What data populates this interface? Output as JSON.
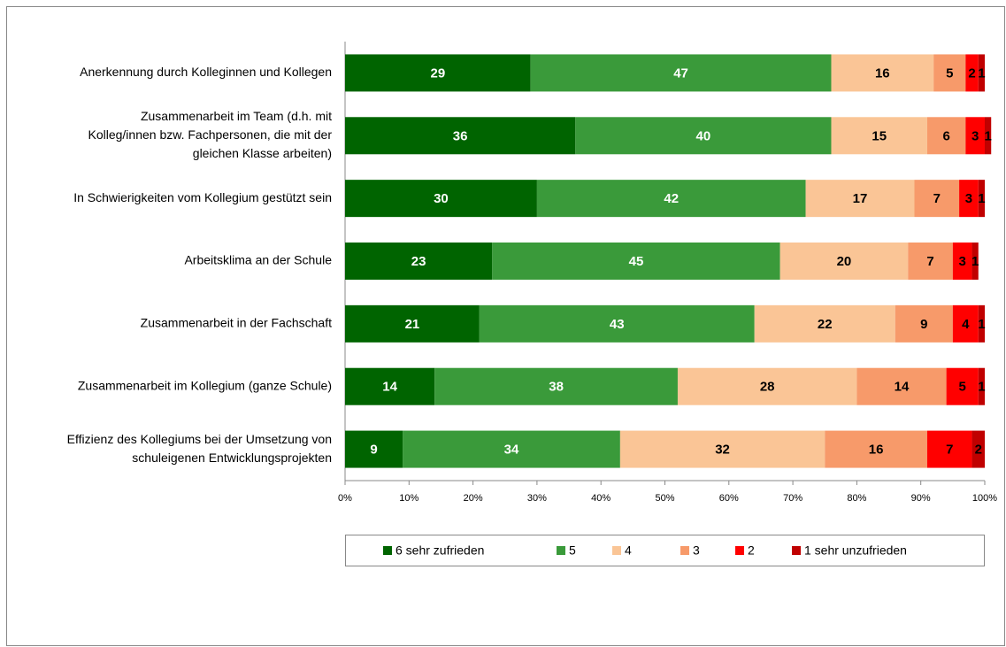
{
  "chart_data": {
    "type": "stacked_barh",
    "categories": [
      [
        "Anerkennung durch Kolleginnen und Kollegen"
      ],
      [
        "Zusammenarbeit im Team (d.h. mit",
        "Kolleg/innen bzw. Fachpersonen, die mit der",
        "gleichen Klasse arbeiten)"
      ],
      [
        "In Schwierigkeiten vom Kollegium gestützt sein"
      ],
      [
        "Arbeitsklima an der Schule"
      ],
      [
        "Zusammenarbeit in der Fachschaft"
      ],
      [
        "Zusammenarbeit im Kollegium (ganze Schule)"
      ],
      [
        "Effizienz des Kollegiums bei der Umsetzung von",
        "schuleigenen Entwicklungsprojekten"
      ]
    ],
    "series": [
      {
        "name": "6 sehr zufrieden",
        "color": "#006400",
        "values": [
          29,
          36,
          30,
          23,
          21,
          14,
          9
        ]
      },
      {
        "name": "5",
        "color": "#3a9a3a",
        "values": [
          47,
          40,
          42,
          45,
          43,
          38,
          34
        ]
      },
      {
        "name": "4",
        "color": "#fac596",
        "values": [
          16,
          15,
          17,
          20,
          22,
          28,
          32
        ]
      },
      {
        "name": "3",
        "color": "#f79a6a",
        "values": [
          5,
          6,
          7,
          7,
          9,
          14,
          16
        ]
      },
      {
        "name": "2",
        "color": "#ff0000",
        "values": [
          2,
          3,
          3,
          3,
          4,
          5,
          7
        ]
      },
      {
        "name": "1 sehr unzufrieden",
        "color": "#c00000",
        "values": [
          1,
          1,
          1,
          1,
          1,
          1,
          2
        ]
      }
    ],
    "xlim": [
      0,
      100
    ],
    "xticks": [
      {
        "value": 0,
        "label": "0%"
      },
      {
        "value": 10,
        "label": "10%"
      },
      {
        "value": 20,
        "label": "20%"
      },
      {
        "value": 30,
        "label": "30%"
      },
      {
        "value": 40,
        "label": "40%"
      },
      {
        "value": 50,
        "label": "50%"
      },
      {
        "value": 60,
        "label": "60%"
      },
      {
        "value": 70,
        "label": "70%"
      },
      {
        "value": 80,
        "label": "80%"
      },
      {
        "value": 90,
        "label": "90%"
      },
      {
        "value": 100,
        "label": "100%"
      }
    ],
    "legend": "bottom"
  }
}
